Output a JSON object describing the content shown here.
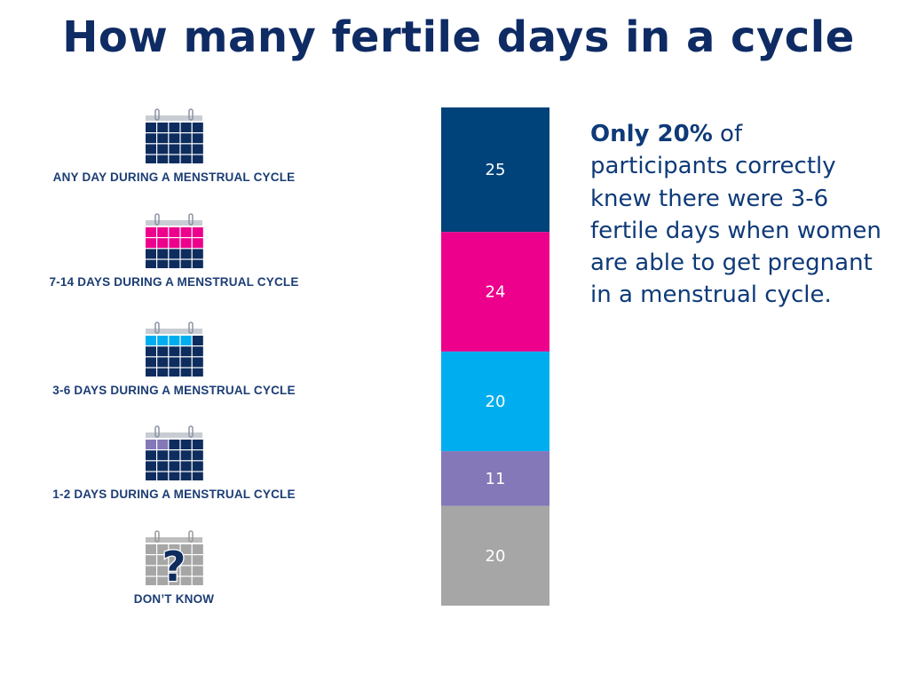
{
  "title": "How many fertile days in a cycle",
  "colors": {
    "title": "#0e2b64",
    "label": "#1c3d74",
    "calendar": "#0e2d5e",
    "unknown": "#a6a6a6"
  },
  "categories": [
    {
      "label": "ANY DAY DURING A MENSTRUAL CYCLE",
      "icon": "calendar-icon",
      "highlight": "#0e2d5e",
      "cells": 0
    },
    {
      "label": "7-14 DAYS DURING A MENSTRUAL CYCLE",
      "icon": "calendar-icon",
      "highlight": "#ec008c",
      "cells": 10
    },
    {
      "label": "3-6 DAYS DURING A MENSTRUAL CYCLE",
      "icon": "calendar-icon",
      "highlight": "#00aeef",
      "cells": 4
    },
    {
      "label": "1-2 DAYS DURING A MENSTRUAL CYCLE",
      "icon": "calendar-icon",
      "highlight": "#8478b8",
      "cells": 2
    },
    {
      "label": "DON’T KNOW",
      "icon": "calendar-question-icon",
      "highlight": "#a6a6a6",
      "cells": 0
    }
  ],
  "chart_data": {
    "type": "bar",
    "stacked": true,
    "categories": [
      "ANY DAY DURING A MENSTRUAL CYCLE",
      "7-14 DAYS DURING A MENSTRUAL CYCLE",
      "3-6 DAYS DURING A MENSTRUAL CYCLE",
      "1-2 DAYS DURING A MENSTRUAL CYCLE",
      "DON’T KNOW"
    ],
    "values": [
      25,
      24,
      20,
      11,
      20
    ],
    "colors": [
      "#00427a",
      "#ec008c",
      "#00aeef",
      "#8478b8",
      "#a6a6a6"
    ],
    "ylim": [
      0,
      100
    ],
    "grid": false,
    "legend": "none"
  },
  "callout": {
    "bold": "Only 20%",
    "text": " of participants correctly knew there were 3-6 fertile days when women are able to get pregnant in a menstrual cycle."
  }
}
